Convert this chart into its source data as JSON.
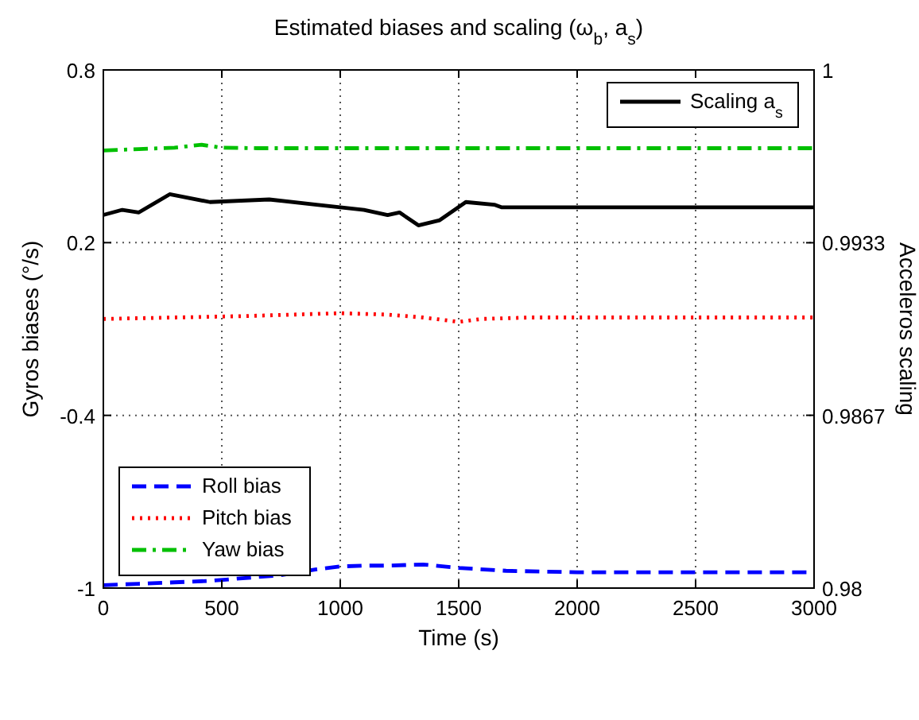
{
  "chart_data": {
    "type": "line",
    "title": "Estimated biases and scaling (ω$_{b}$, a$_{s}$)",
    "xlabel": "Time (s)",
    "ylabel": "Gyros biases (°/s)",
    "y2label": "Acceleros scaling",
    "xlim": [
      0,
      3000
    ],
    "xticks": [
      0,
      500,
      1000,
      1500,
      2000,
      2500,
      3000
    ],
    "ylim": [
      -1,
      0.8
    ],
    "yticks": [
      -1,
      -0.4,
      0.2,
      0.8
    ],
    "y2lim": [
      0.98,
      1
    ],
    "y2ticks": [
      0.98,
      {
        "value": 0.98667,
        "label": "0.9867"
      },
      {
        "value": 0.99333,
        "label": "0.9933"
      },
      1
    ],
    "grid": true,
    "legend": "left",
    "series": [
      {
        "name": "Roll bias",
        "color": "#0000ff",
        "line_style": "dashed",
        "x": [
          0,
          150,
          300,
          450,
          600,
          750,
          900,
          1000,
          1100,
          1200,
          1350,
          1500,
          1700,
          2000,
          3000
        ],
        "values": [
          -0.99,
          -0.985,
          -0.98,
          -0.975,
          -0.965,
          -0.955,
          -0.935,
          -0.925,
          -0.922,
          -0.922,
          -0.918,
          -0.93,
          -0.94,
          -0.945,
          -0.945
        ]
      },
      {
        "name": "Pitch bias",
        "color": "#ff0000",
        "line_style": "dotted",
        "x": [
          0,
          300,
          600,
          800,
          1000,
          1200,
          1350,
          1500,
          1600,
          1800,
          2200,
          3000
        ],
        "values": [
          -0.065,
          -0.06,
          -0.055,
          -0.05,
          -0.045,
          -0.05,
          -0.06,
          -0.075,
          -0.065,
          -0.06,
          -0.06,
          -0.06
        ]
      },
      {
        "name": "Yaw bias",
        "color": "#00c000",
        "line_style": "dashdot",
        "x": [
          0,
          150,
          300,
          415,
          500,
          650,
          800,
          3000
        ],
        "values": [
          0.52,
          0.525,
          0.53,
          0.54,
          0.53,
          0.528,
          0.528,
          0.528
        ]
      },
      {
        "name": "Scaling a$_{s}$",
        "color": "#000000",
        "line_style": "solid",
        "axis": "y2",
        "x": [
          0,
          80,
          150,
          280,
          450,
          700,
          900,
          1100,
          1200,
          1250,
          1330,
          1420,
          1530,
          1650,
          1680,
          3000
        ],
        "values": [
          0.9944,
          0.9946,
          0.9945,
          0.9952,
          0.9949,
          0.995,
          0.9948,
          0.9946,
          0.9944,
          0.9945,
          0.994,
          0.9942,
          0.9949,
          0.9948,
          0.9947,
          0.9947
        ]
      }
    ]
  }
}
